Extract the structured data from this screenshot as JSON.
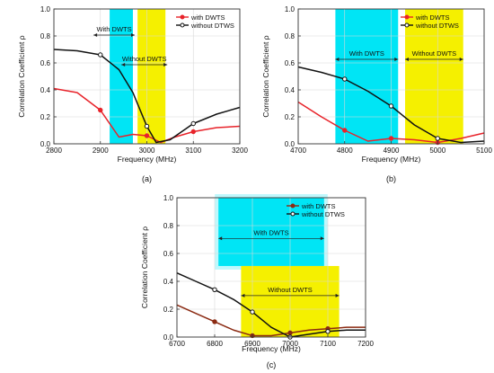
{
  "colors": {
    "cyan": "#00e5f5",
    "yellow": "#f5f000",
    "red": "#e8232a",
    "black": "#111111",
    "brown": "#8b2a12"
  },
  "chart_data": [
    {
      "type": "line",
      "panel_label": "(a)",
      "xlabel": "Frequency (MHz)",
      "ylabel": "Correlation Coefficient ρ",
      "xlim": [
        2800,
        3200
      ],
      "ylim": [
        0,
        1.0
      ],
      "x_ticks": [
        2800,
        2900,
        3000,
        3100,
        3200
      ],
      "y_ticks": [
        "0.0",
        "0.2",
        "0.4",
        "0.6",
        "0.8",
        "1.0"
      ],
      "legend_position": "top-right",
      "bands": [
        {
          "color": "cyan",
          "x": [
            2920,
            2970
          ],
          "y": [
            0,
            1.0
          ],
          "label": "With DWTS",
          "label_y": 0.84
        },
        {
          "color": "yellow",
          "x": [
            2980,
            3040
          ],
          "y": [
            0,
            1.0
          ],
          "label": "Without DWTS",
          "label_y": 0.62
        }
      ],
      "series": [
        {
          "name": "with DWTS",
          "color": "red",
          "x": [
            2800,
            2850,
            2900,
            2940,
            2970,
            3000,
            3030,
            3060,
            3100,
            3150,
            3200
          ],
          "y": [
            0.41,
            0.38,
            0.25,
            0.05,
            0.07,
            0.06,
            0.01,
            0.05,
            0.09,
            0.12,
            0.13
          ],
          "marker_x": [
            2900,
            3000,
            3100
          ]
        },
        {
          "name": "without DTWS",
          "color": "black",
          "x": [
            2800,
            2850,
            2900,
            2940,
            2970,
            3000,
            3020,
            3050,
            3100,
            3150,
            3200
          ],
          "y": [
            0.7,
            0.69,
            0.66,
            0.55,
            0.38,
            0.13,
            0.01,
            0.03,
            0.15,
            0.22,
            0.27
          ],
          "marker_x": [
            2900,
            3000,
            3100
          ]
        }
      ]
    },
    {
      "type": "line",
      "panel_label": "(b)",
      "xlabel": "Frequency (MHz)",
      "ylabel": "Correlation Coefficient ρ",
      "xlim": [
        4700,
        5100
      ],
      "ylim": [
        0,
        1.0
      ],
      "x_ticks": [
        4700,
        4800,
        4900,
        5000,
        5100
      ],
      "y_ticks": [
        "0.0",
        "0.2",
        "0.4",
        "0.6",
        "0.8",
        "1.0"
      ],
      "legend_position": "top-right",
      "bands": [
        {
          "color": "cyan",
          "x": [
            4780,
            4915
          ],
          "y": [
            0,
            1.0
          ],
          "label": "With DWTS",
          "label_y": 0.66
        },
        {
          "color": "yellow",
          "x": [
            4930,
            5055
          ],
          "y": [
            0,
            1.0
          ],
          "label": "Without DWTS",
          "label_y": 0.66
        }
      ],
      "series": [
        {
          "name": "with DWTS",
          "color": "red",
          "x": [
            4700,
            4750,
            4800,
            4850,
            4900,
            4950,
            5000,
            5050,
            5100
          ],
          "y": [
            0.31,
            0.2,
            0.1,
            0.02,
            0.04,
            0.03,
            0.01,
            0.04,
            0.08
          ],
          "marker_x": [
            4800,
            4900,
            5000
          ]
        },
        {
          "name": "without DTWS",
          "color": "black",
          "x": [
            4700,
            4750,
            4800,
            4850,
            4900,
            4950,
            5000,
            5050,
            5100
          ],
          "y": [
            0.57,
            0.53,
            0.48,
            0.39,
            0.28,
            0.14,
            0.04,
            0.01,
            0.02
          ],
          "marker_x": [
            4800,
            4900,
            5000
          ]
        }
      ]
    },
    {
      "type": "line",
      "panel_label": "(c)",
      "xlabel": "Frequency (MHz)",
      "ylabel": "Correlation Coefficient ρ",
      "xlim": [
        6700,
        7200
      ],
      "ylim": [
        0,
        1.0
      ],
      "x_ticks": [
        6700,
        6800,
        6900,
        7000,
        7100,
        7200
      ],
      "y_ticks": [
        "0.0",
        "0.2",
        "0.4",
        "0.6",
        "0.8",
        "1.0"
      ],
      "legend_position": "top-right",
      "bands": [
        {
          "color": "cyan",
          "x": [
            6810,
            7090
          ],
          "y": [
            0.51,
            1.0
          ],
          "label": "With DWTS",
          "label_y": 0.74
        },
        {
          "color": "yellow",
          "x": [
            6870,
            7130
          ],
          "y": [
            0,
            0.51
          ],
          "label": "Without DWTS",
          "label_y": 0.33
        }
      ],
      "series": [
        {
          "name": "with DWTS",
          "color": "brown",
          "x": [
            6700,
            6750,
            6800,
            6850,
            6900,
            6950,
            7000,
            7050,
            7100,
            7150,
            7200
          ],
          "y": [
            0.23,
            0.17,
            0.11,
            0.05,
            0.01,
            0.01,
            0.03,
            0.05,
            0.06,
            0.07,
            0.07
          ],
          "marker_x": [
            6800,
            6900,
            7000,
            7100
          ]
        },
        {
          "name": "without DTWS",
          "color": "black",
          "x": [
            6700,
            6750,
            6800,
            6850,
            6900,
            6950,
            7000,
            7050,
            7100,
            7150,
            7200
          ],
          "y": [
            0.46,
            0.4,
            0.34,
            0.27,
            0.18,
            0.07,
            0.0,
            0.02,
            0.04,
            0.05,
            0.05
          ],
          "marker_x": [
            6800,
            6900,
            7000,
            7100
          ]
        }
      ]
    }
  ]
}
